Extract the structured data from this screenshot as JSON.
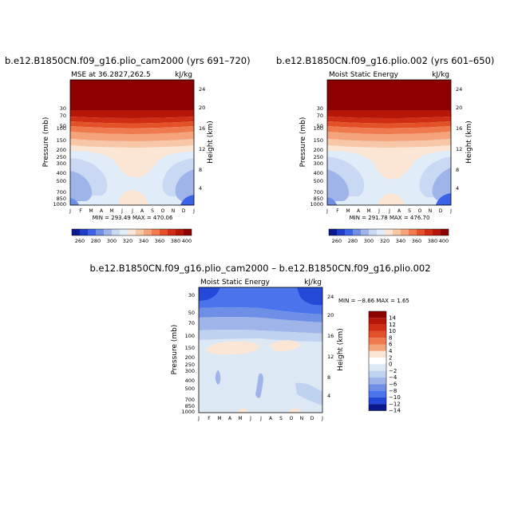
{
  "chart_data": [
    {
      "type": "heatmap",
      "title": "b.e12.B1850CN.f09_g16.plio_cam2000 (yrs 691–720)",
      "subtitle": "MSE at 36.2827,262.5",
      "units": "kJ/kg",
      "ylabel": "Pressure (mb)",
      "ylabel_right": "Height (km)",
      "x_ticks": [
        "J",
        "F",
        "M",
        "A",
        "M",
        "J",
        "J",
        "A",
        "S",
        "O",
        "N",
        "D",
        "J"
      ],
      "y_ticks": [
        "30",
        "50",
        "70",
        "100",
        "150",
        "200",
        "250",
        "300",
        "400",
        "500",
        "700",
        "850",
        "1000"
      ],
      "y_ticks_right": [
        "24",
        "20",
        "16",
        "12",
        "8",
        "4"
      ],
      "stats_text": "MIN = 293.49 MAX = 470.06",
      "min": 293.49,
      "max": 470.06,
      "colorbar_labels": [
        "260",
        "280",
        "300",
        "320",
        "340",
        "360",
        "380",
        "400"
      ]
    },
    {
      "type": "heatmap",
      "title": "b.e12.B1850CN.f09_g16.plio.002 (yrs 601–650)",
      "subtitle": "Moist Static Energy",
      "units": "kJ/kg",
      "ylabel": "Pressure (mb)",
      "ylabel_right": "Height (km)",
      "x_ticks": [
        "J",
        "F",
        "M",
        "A",
        "M",
        "J",
        "J",
        "A",
        "S",
        "O",
        "N",
        "D",
        "J"
      ],
      "y_ticks": [
        "30",
        "50",
        "70",
        "100",
        "150",
        "200",
        "250",
        "300",
        "400",
        "500",
        "700",
        "850",
        "1000"
      ],
      "y_ticks_right": [
        "24",
        "20",
        "16",
        "12",
        "8",
        "4"
      ],
      "stats_text": "MIN = 291.78 MAX = 476.70",
      "min": 291.78,
      "max": 476.7,
      "colorbar_labels": [
        "260",
        "280",
        "300",
        "320",
        "340",
        "360",
        "380",
        "400"
      ]
    },
    {
      "type": "heatmap",
      "title": "b.e12.B1850CN.f09_g16.plio_cam2000 – b.e12.B1850CN.f09_g16.plio.002",
      "subtitle": "Moist Static Energy",
      "units": "kJ/kg",
      "ylabel": "Pressure (mb)",
      "ylabel_right": "Height (km)",
      "x_ticks": [
        "J",
        "F",
        "M",
        "A",
        "M",
        "J",
        "J",
        "A",
        "S",
        "O",
        "N",
        "D",
        "J"
      ],
      "y_ticks": [
        "30",
        "50",
        "70",
        "100",
        "150",
        "200",
        "250",
        "300",
        "400",
        "500",
        "700",
        "850",
        "1000"
      ],
      "y_ticks_right": [
        "24",
        "20",
        "16",
        "12",
        "8",
        "4"
      ],
      "stats_text": "MIN =  −8.66 MAX =   1.65",
      "min": -8.66,
      "max": 1.65,
      "colorbar_labels": [
        "14",
        "12",
        "10",
        "8",
        "6",
        "4",
        "2",
        "0",
        "−2",
        "−4",
        "−6",
        "−8",
        "−10",
        "−12",
        "−14"
      ]
    }
  ],
  "colors": {
    "mse_scale": [
      "#0a1a8c",
      "#1d3fc7",
      "#3a63e8",
      "#6f8fe6",
      "#9fb5ea",
      "#c9d8f3",
      "#e0ecf8",
      "#fbe6d6",
      "#f7c8a8",
      "#f4a37a",
      "#ef7a4e",
      "#e25128",
      "#cf2d14",
      "#b51608",
      "#8c0000"
    ],
    "diff_scale": [
      "#8c0000",
      "#b51608",
      "#cf2d14",
      "#e25128",
      "#ef7a4e",
      "#f4a37a",
      "#fbe6d6",
      "#ffffff",
      "#dde8f5",
      "#bfd2ef",
      "#9fb5ea",
      "#6f8fe6",
      "#4b73ec",
      "#2448d8",
      "#0a1a8c"
    ]
  }
}
